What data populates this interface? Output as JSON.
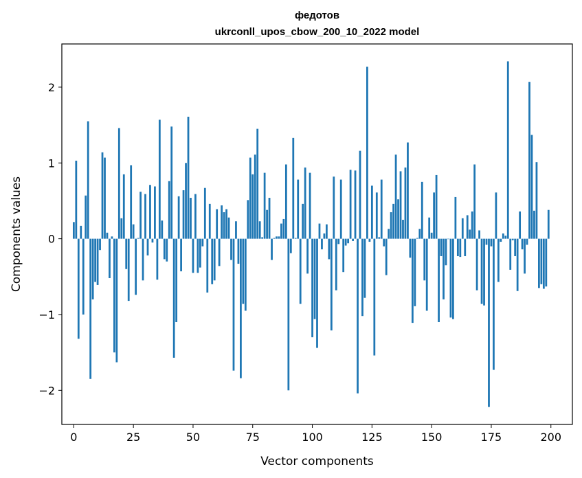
{
  "chart_data": {
    "type": "bar",
    "title": "федотов",
    "subtitle": "ukrconll_upos_cbow_200_10_2022 model",
    "xlabel": "Vector components",
    "ylabel": "Components values",
    "xlim": [
      -5,
      209
    ],
    "ylim": [
      -2.45,
      2.57
    ],
    "xticks": [
      0,
      25,
      50,
      75,
      100,
      125,
      150,
      175,
      200
    ],
    "yticks": [
      -2,
      -1,
      0,
      1,
      2
    ],
    "ytick_labels": [
      "−2",
      "−1",
      "0",
      "1",
      "2"
    ],
    "grid": false,
    "bar_color": "#1f77b4",
    "values": [
      0.22,
      1.03,
      -1.32,
      0.17,
      -1.0,
      0.57,
      1.55,
      -1.85,
      -0.8,
      -0.57,
      -0.61,
      -0.15,
      1.14,
      1.07,
      0.08,
      -0.52,
      0.03,
      -1.5,
      -1.63,
      1.46,
      0.27,
      0.85,
      -0.4,
      -0.82,
      0.97,
      0.19,
      -0.74,
      0.01,
      0.62,
      -0.55,
      0.59,
      -0.22,
      0.71,
      -0.05,
      0.69,
      -0.54,
      1.57,
      0.24,
      -0.27,
      -0.3,
      0.76,
      1.48,
      -1.57,
      -1.1,
      0.56,
      -0.43,
      0.64,
      1.0,
      1.61,
      0.54,
      -0.45,
      0.59,
      -0.45,
      -0.38,
      -0.1,
      0.67,
      -0.71,
      0.46,
      -0.6,
      -0.55,
      0.39,
      -0.36,
      0.44,
      0.35,
      0.39,
      0.28,
      -0.28,
      -1.74,
      0.23,
      -0.33,
      -1.84,
      -0.86,
      -0.95,
      0.51,
      1.07,
      0.85,
      1.11,
      1.45,
      0.23,
      0.02,
      0.87,
      0.38,
      0.54,
      -0.28,
      0.01,
      0.03,
      0.03,
      0.2,
      0.26,
      0.98,
      -2.0,
      -0.19,
      1.33,
      0.01,
      0.78,
      -0.86,
      0.46,
      0.94,
      -0.46,
      0.87,
      -1.3,
      -1.06,
      -1.44,
      0.2,
      -0.14,
      0.07,
      0.19,
      -0.27,
      -1.21,
      0.82,
      -0.68,
      -0.07,
      0.78,
      -0.44,
      -0.09,
      -0.06,
      0.91,
      -0.03,
      0.9,
      -2.04,
      1.16,
      -1.02,
      -0.78,
      2.27,
      -0.04,
      0.7,
      -1.54,
      0.61,
      0.02,
      0.78,
      -0.1,
      -0.48,
      0.13,
      0.35,
      0.46,
      1.11,
      0.52,
      0.89,
      0.25,
      0.94,
      1.27,
      -0.25,
      -1.11,
      -0.89,
      0.01,
      0.13,
      0.75,
      -0.55,
      -0.95,
      0.28,
      0.08,
      0.61,
      0.84,
      -1.1,
      -0.23,
      -0.8,
      -0.35,
      0.0,
      -1.04,
      -1.06,
      0.55,
      -0.23,
      -0.24,
      0.27,
      -0.23,
      0.31,
      0.12,
      0.36,
      0.98,
      -0.68,
      0.11,
      -0.86,
      -0.88,
      -0.08,
      -2.22,
      -0.1,
      -1.73,
      0.61,
      -0.57,
      -0.04,
      0.07,
      0.04,
      2.34,
      -0.41,
      -0.02,
      -0.23,
      -0.69,
      0.36,
      -0.14,
      -0.46,
      -0.08,
      2.07,
      1.37,
      0.37,
      1.01,
      -0.65,
      -0.6,
      -0.66,
      -0.63,
      0.38
    ]
  }
}
